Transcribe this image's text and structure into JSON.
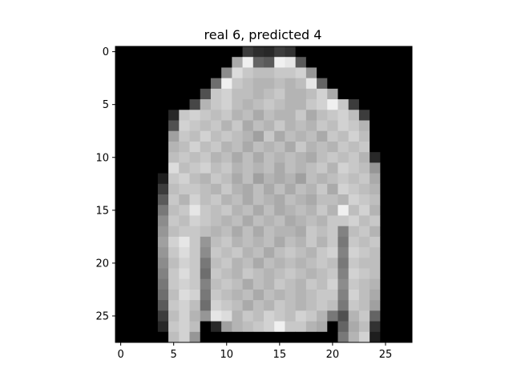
{
  "chart_data": {
    "type": "heatmap",
    "title": "real 6, predicted 4",
    "colormap": "gray",
    "value_range": [
      0,
      255
    ],
    "xlim": [
      -0.5,
      27.5
    ],
    "ylim": [
      27.5,
      -0.5
    ],
    "x_ticks": [
      0,
      5,
      10,
      15,
      20,
      25
    ],
    "y_ticks": [
      0,
      5,
      10,
      15,
      20,
      25
    ],
    "x_tick_labels": [
      "0",
      "5",
      "10",
      "15",
      "20",
      "25"
    ],
    "y_tick_labels": [
      "0",
      "5",
      "10",
      "15",
      "20",
      "25"
    ],
    "pixels": [
      [
        0,
        0,
        0,
        0,
        0,
        0,
        0,
        0,
        0,
        0,
        0,
        0,
        60,
        45,
        40,
        60,
        50,
        0,
        0,
        0,
        0,
        0,
        0,
        0,
        0,
        0,
        0,
        0
      ],
      [
        0,
        0,
        0,
        0,
        0,
        0,
        0,
        0,
        0,
        0,
        0,
        170,
        240,
        100,
        90,
        240,
        230,
        90,
        0,
        0,
        0,
        0,
        0,
        0,
        0,
        0,
        0,
        0
      ],
      [
        0,
        0,
        0,
        0,
        0,
        0,
        0,
        0,
        0,
        0,
        140,
        220,
        200,
        190,
        190,
        200,
        200,
        210,
        150,
        0,
        0,
        0,
        0,
        0,
        0,
        0,
        0,
        0
      ],
      [
        0,
        0,
        0,
        0,
        0,
        0,
        0,
        0,
        0,
        110,
        240,
        200,
        190,
        180,
        180,
        190,
        180,
        190,
        230,
        100,
        0,
        0,
        0,
        0,
        0,
        0,
        0,
        0
      ],
      [
        0,
        0,
        0,
        0,
        0,
        0,
        0,
        0,
        80,
        200,
        210,
        190,
        190,
        180,
        190,
        200,
        180,
        180,
        190,
        210,
        170,
        0,
        0,
        0,
        0,
        0,
        0,
        0
      ],
      [
        0,
        0,
        0,
        0,
        0,
        0,
        0,
        70,
        180,
        200,
        210,
        190,
        180,
        190,
        200,
        190,
        180,
        180,
        200,
        210,
        240,
        200,
        60,
        0,
        0,
        0,
        0,
        0
      ],
      [
        0,
        0,
        0,
        0,
        0,
        40,
        200,
        210,
        200,
        190,
        200,
        180,
        190,
        170,
        190,
        180,
        180,
        200,
        170,
        190,
        200,
        210,
        190,
        60,
        0,
        0,
        0,
        0
      ],
      [
        0,
        0,
        0,
        0,
        0,
        80,
        210,
        200,
        190,
        200,
        180,
        200,
        170,
        190,
        180,
        200,
        180,
        190,
        180,
        200,
        190,
        210,
        200,
        180,
        0,
        0,
        0,
        0
      ],
      [
        0,
        0,
        0,
        0,
        0,
        160,
        200,
        190,
        210,
        190,
        200,
        190,
        180,
        160,
        200,
        170,
        190,
        180,
        190,
        170,
        200,
        190,
        210,
        190,
        0,
        0,
        0,
        0
      ],
      [
        0,
        0,
        0,
        0,
        0,
        180,
        190,
        210,
        190,
        200,
        180,
        190,
        170,
        190,
        180,
        190,
        170,
        200,
        180,
        190,
        180,
        200,
        190,
        200,
        0,
        0,
        0,
        0
      ],
      [
        0,
        0,
        0,
        0,
        0,
        190,
        200,
        190,
        200,
        180,
        190,
        170,
        190,
        170,
        190,
        180,
        190,
        180,
        170,
        190,
        200,
        190,
        200,
        180,
        40,
        0,
        0,
        0
      ],
      [
        0,
        0,
        0,
        0,
        0,
        220,
        190,
        200,
        210,
        190,
        200,
        180,
        190,
        180,
        190,
        170,
        190,
        180,
        190,
        200,
        180,
        210,
        200,
        190,
        150,
        0,
        0,
        0
      ],
      [
        0,
        0,
        0,
        0,
        30,
        200,
        210,
        190,
        180,
        200,
        190,
        170,
        190,
        160,
        180,
        170,
        180,
        160,
        190,
        180,
        190,
        200,
        190,
        200,
        170,
        0,
        0,
        0
      ],
      [
        0,
        0,
        0,
        0,
        60,
        190,
        200,
        200,
        190,
        180,
        200,
        180,
        170,
        190,
        170,
        190,
        170,
        190,
        180,
        200,
        170,
        210,
        200,
        190,
        180,
        0,
        0,
        0
      ],
      [
        0,
        0,
        0,
        0,
        90,
        200,
        180,
        210,
        190,
        200,
        180,
        190,
        170,
        190,
        180,
        170,
        190,
        180,
        170,
        190,
        190,
        180,
        210,
        200,
        190,
        0,
        0,
        0
      ],
      [
        0,
        0,
        0,
        0,
        120,
        190,
        200,
        230,
        200,
        190,
        200,
        180,
        190,
        170,
        190,
        170,
        180,
        190,
        180,
        200,
        180,
        240,
        190,
        210,
        180,
        0,
        0,
        0
      ],
      [
        0,
        0,
        0,
        0,
        140,
        200,
        190,
        210,
        200,
        190,
        180,
        190,
        170,
        190,
        180,
        190,
        170,
        180,
        190,
        180,
        200,
        200,
        210,
        190,
        200,
        0,
        0,
        0
      ],
      [
        0,
        0,
        0,
        0,
        150,
        190,
        200,
        200,
        190,
        180,
        190,
        170,
        190,
        170,
        190,
        180,
        180,
        170,
        200,
        190,
        200,
        130,
        190,
        200,
        180,
        0,
        0,
        0
      ],
      [
        0,
        0,
        0,
        0,
        160,
        210,
        230,
        200,
        150,
        190,
        200,
        180,
        190,
        180,
        190,
        170,
        190,
        180,
        200,
        180,
        200,
        120,
        200,
        190,
        200,
        0,
        0,
        0
      ],
      [
        0,
        0,
        0,
        0,
        150,
        200,
        220,
        200,
        140,
        200,
        190,
        200,
        180,
        190,
        170,
        190,
        200,
        190,
        180,
        200,
        210,
        130,
        210,
        200,
        190,
        0,
        0,
        0
      ],
      [
        0,
        0,
        0,
        0,
        140,
        190,
        210,
        200,
        120,
        190,
        200,
        180,
        190,
        170,
        190,
        180,
        190,
        180,
        190,
        200,
        190,
        120,
        200,
        190,
        190,
        0,
        0,
        0
      ],
      [
        0,
        0,
        0,
        0,
        130,
        200,
        220,
        200,
        110,
        200,
        190,
        180,
        200,
        190,
        180,
        190,
        200,
        190,
        180,
        190,
        200,
        130,
        210,
        200,
        190,
        0,
        0,
        0
      ],
      [
        0,
        0,
        0,
        0,
        120,
        200,
        210,
        200,
        130,
        190,
        200,
        190,
        170,
        190,
        180,
        200,
        190,
        180,
        200,
        190,
        210,
        140,
        200,
        190,
        180,
        0,
        0,
        0
      ],
      [
        0,
        0,
        0,
        0,
        110,
        190,
        220,
        210,
        120,
        200,
        190,
        180,
        190,
        170,
        190,
        180,
        190,
        180,
        190,
        200,
        200,
        130,
        210,
        190,
        170,
        0,
        0,
        0
      ],
      [
        0,
        0,
        0,
        0,
        90,
        200,
        210,
        190,
        110,
        210,
        200,
        190,
        170,
        190,
        180,
        200,
        190,
        180,
        190,
        200,
        190,
        120,
        200,
        190,
        160,
        0,
        0,
        0
      ],
      [
        0,
        0,
        0,
        0,
        60,
        190,
        210,
        180,
        150,
        230,
        220,
        180,
        200,
        190,
        210,
        200,
        190,
        210,
        200,
        180,
        120,
        80,
        180,
        200,
        100,
        0,
        0,
        0
      ],
      [
        0,
        0,
        0,
        0,
        40,
        200,
        210,
        190,
        0,
        40,
        160,
        180,
        190,
        200,
        210,
        240,
        200,
        200,
        180,
        170,
        0,
        100,
        170,
        190,
        50,
        0,
        0,
        0
      ],
      [
        0,
        0,
        0,
        0,
        0,
        190,
        210,
        150,
        0,
        0,
        0,
        0,
        0,
        0,
        0,
        0,
        0,
        0,
        0,
        0,
        0,
        120,
        180,
        210,
        30,
        0,
        0,
        0
      ]
    ]
  }
}
